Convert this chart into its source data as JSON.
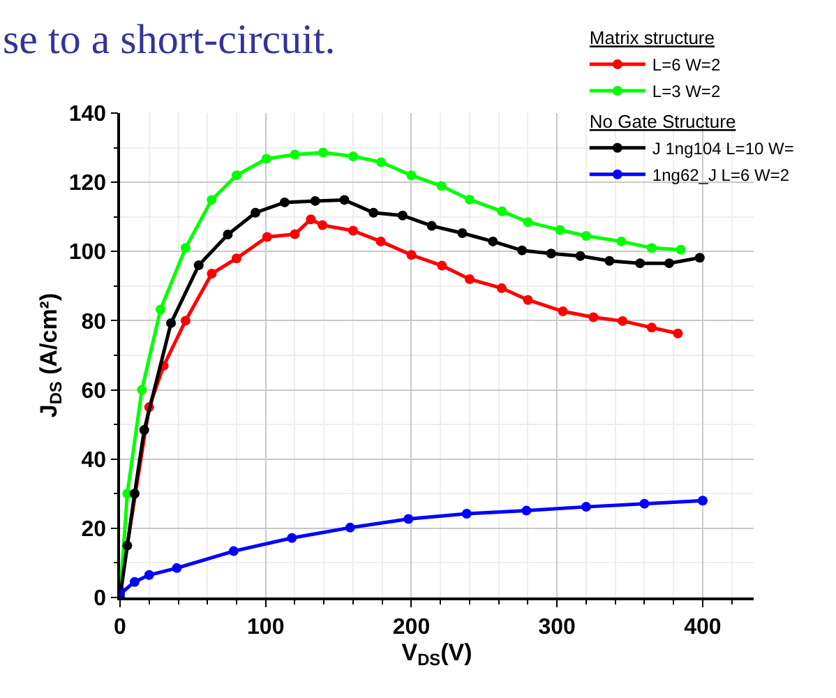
{
  "chart_data": {
    "type": "line",
    "xlabel": "V$_{DS}$(V)",
    "ylabel": "J$_{DS}$ (A/cm²)",
    "annotations": [
      "se to a short-circuit."
    ],
    "legend_title": [
      "Matrix structure",
      "No Gate Structure"
    ],
    "series": [
      {
        "name": "L=6 W=2",
        "color": "#ff0000",
        "x": [
          0,
          20,
          30,
          45,
          63,
          80,
          101,
          120,
          131,
          139,
          160,
          179,
          200,
          221,
          240,
          262,
          280,
          304,
          325,
          345,
          365,
          383
        ],
        "values": [
          2,
          55,
          67,
          80,
          93.6,
          98,
          104.2,
          105,
          109.3,
          107.6,
          106,
          102.9,
          99,
          95.9,
          92,
          89.4,
          86,
          82.7,
          81,
          79.9,
          78,
          76.3
        ]
      },
      {
        "name": "L=3 W=2",
        "color": "#00ff00",
        "x": [
          0,
          5,
          15,
          27.8,
          45,
          62.9,
          80,
          100.5,
          120,
          139.4,
          160,
          179.2,
          200,
          220.7,
          240,
          262.2,
          280,
          302,
          320,
          344.2,
          365,
          385
        ],
        "values": [
          0,
          30,
          60,
          83.2,
          101,
          114.9,
          122,
          126.8,
          128,
          128.6,
          127.5,
          125.8,
          122,
          118.9,
          115,
          111.6,
          108.5,
          106.2,
          104.5,
          102.9,
          101,
          100.5
        ]
      },
      {
        "name": "J 1ng104 L=10 W=",
        "color": "#000000",
        "x": [
          0,
          5,
          10,
          16.6,
          35,
          54,
          74,
          93,
          113,
          134,
          154,
          174,
          194,
          214,
          235,
          256,
          276,
          296,
          316,
          336,
          357,
          377,
          398
        ],
        "values": [
          0,
          15,
          30,
          48.4,
          79.3,
          96.0,
          104.9,
          111.2,
          114.2,
          114.6,
          114.9,
          111.2,
          110.4,
          107.4,
          105.3,
          102.9,
          100.3,
          99.4,
          98.7,
          97.3,
          96.6,
          96.6,
          98.2
        ]
      },
      {
        "name": "1ng62_J L=6 W=2",
        "color": "#0000ff",
        "x": [
          0,
          10,
          20,
          39,
          78,
          118,
          158,
          198,
          238,
          279,
          320,
          360,
          400
        ],
        "values": [
          1,
          4.5,
          6.5,
          8.5,
          13.4,
          17.2,
          20.2,
          22.7,
          24.2,
          25.1,
          26.2,
          27.1,
          28.0
        ]
      }
    ],
    "xlim": [
      0,
      435
    ],
    "xticks": [
      0,
      100,
      200,
      300,
      400
    ],
    "ylim": [
      0,
      140
    ],
    "yticks": [
      0,
      20,
      40,
      60,
      80,
      100,
      120,
      140
    ],
    "grid": true,
    "legend": "top right",
    "marker": "circle",
    "line_style": "solid"
  }
}
